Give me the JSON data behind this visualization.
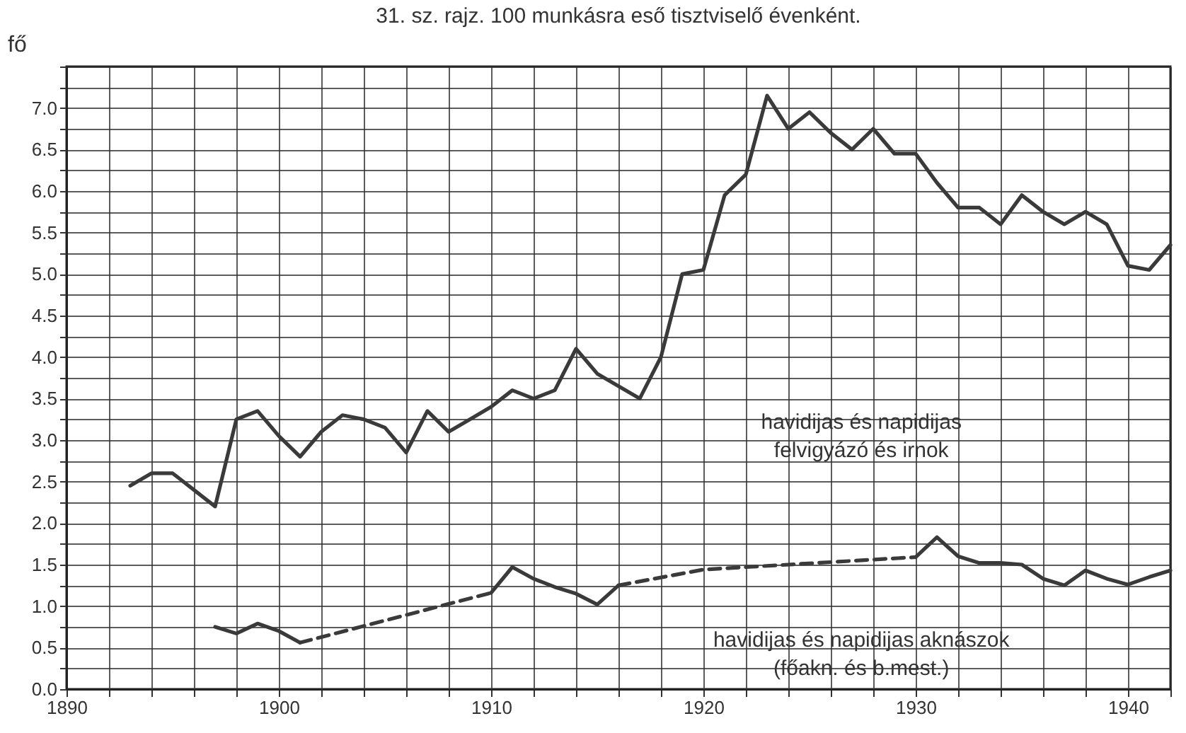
{
  "chart_data": {
    "type": "line",
    "title": "31. sz. rajz. 100 munkásra eső tisztviselő évenként.",
    "ylabel": "fő",
    "xlim": [
      1890,
      1942
    ],
    "ylim": [
      0,
      7.5
    ],
    "xticks": [
      1890,
      {
        "value": 1892,
        "label": null
      },
      {
        "value": 1894,
        "label": null
      },
      {
        "value": 1896,
        "label": null
      },
      {
        "value": 1898,
        "label": null
      },
      1900,
      {
        "value": 1902,
        "label": null
      },
      {
        "value": 1904,
        "label": null
      },
      {
        "value": 1906,
        "label": null
      },
      {
        "value": 1908,
        "label": null
      },
      1910,
      {
        "value": 1912,
        "label": null
      },
      {
        "value": 1914,
        "label": null
      },
      {
        "value": 1916,
        "label": null
      },
      {
        "value": 1918,
        "label": null
      },
      1920,
      {
        "value": 1922,
        "label": null
      },
      {
        "value": 1924,
        "label": null
      },
      {
        "value": 1926,
        "label": null
      },
      {
        "value": 1928,
        "label": null
      },
      1930,
      {
        "value": 1932,
        "label": null
      },
      {
        "value": 1934,
        "label": null
      },
      {
        "value": 1936,
        "label": null
      },
      {
        "value": 1938,
        "label": null
      },
      1940,
      {
        "value": 1942,
        "label": null
      }
    ],
    "yticks": [
      {
        "value": 0,
        "label": "0.0"
      },
      {
        "value": 0.25,
        "label": null
      },
      {
        "value": 0.5,
        "label": "0.5"
      },
      {
        "value": 0.75,
        "label": null
      },
      {
        "value": 1,
        "label": "1.0"
      },
      {
        "value": 1.25,
        "label": null
      },
      {
        "value": 1.5,
        "label": "1.5"
      },
      {
        "value": 1.75,
        "label": null
      },
      {
        "value": 2,
        "label": "2.0"
      },
      {
        "value": 2.25,
        "label": null
      },
      {
        "value": 2.5,
        "label": "2.5"
      },
      {
        "value": 2.75,
        "label": null
      },
      {
        "value": 3,
        "label": "3.0"
      },
      {
        "value": 3.25,
        "label": null
      },
      {
        "value": 3.5,
        "label": "3.5"
      },
      {
        "value": 3.75,
        "label": null
      },
      {
        "value": 4,
        "label": "4.0"
      },
      {
        "value": 4.25,
        "label": null
      },
      {
        "value": 4.5,
        "label": "4.5"
      },
      {
        "value": 4.75,
        "label": null
      },
      {
        "value": 5,
        "label": "5.0"
      },
      {
        "value": 5.25,
        "label": null
      },
      {
        "value": 5.5,
        "label": "5.5"
      },
      {
        "value": 5.75,
        "label": null
      },
      {
        "value": 6,
        "label": "6.0"
      },
      {
        "value": 6.25,
        "label": null
      },
      {
        "value": 6.5,
        "label": "6.5"
      },
      {
        "value": 6.75,
        "label": null
      },
      {
        "value": 7,
        "label": "7.0"
      },
      {
        "value": 7.25,
        "label": null
      },
      {
        "value": 7.5,
        "label": null
      }
    ],
    "grid": true,
    "series": [
      {
        "color": "#3a3a3a",
        "line_style": "solid",
        "x": [
          1893,
          1894,
          1895,
          1896,
          1897,
          1898,
          1899,
          1900,
          1901,
          1902,
          1903,
          1904,
          1905,
          1906,
          1907,
          1908,
          1909,
          1910,
          1911,
          1912,
          1913,
          1914,
          1915,
          1916,
          1917,
          1918,
          1919,
          1920,
          1921,
          1922,
          1923,
          1924,
          1925,
          1926,
          1927,
          1928,
          1929,
          1930,
          1931,
          1932,
          1933,
          1934,
          1935,
          1936,
          1937,
          1938,
          1939,
          1940,
          1941,
          1942
        ],
        "values": [
          2.45,
          2.6,
          2.6,
          2.4,
          2.2,
          3.25,
          3.35,
          3.05,
          2.8,
          3.1,
          3.3,
          3.25,
          3.15,
          2.85,
          3.35,
          3.1,
          3.25,
          3.4,
          3.6,
          3.5,
          3.6,
          4.1,
          3.8,
          3.65,
          3.5,
          4.0,
          5.0,
          5.05,
          5.95,
          6.2,
          7.15,
          6.75,
          6.95,
          6.7,
          6.5,
          6.75,
          6.45,
          6.45,
          6.1,
          5.8,
          5.8,
          5.6,
          5.95,
          5.75,
          5.6,
          5.75,
          5.6,
          5.1,
          5.05,
          5.35
        ]
      },
      {
        "color": "#3a3a3a",
        "line_style": "solid",
        "x": [
          1897,
          1898,
          1899,
          1900,
          1901
        ],
        "values": [
          0.75,
          0.67,
          0.79,
          0.7,
          0.56
        ]
      },
      {
        "color": "#3a3a3a",
        "line_style": "dashed",
        "x": [
          1901,
          1910
        ],
        "values": [
          0.56,
          1.16
        ]
      },
      {
        "color": "#3a3a3a",
        "line_style": "solid",
        "x": [
          1910,
          1911,
          1912,
          1913,
          1914,
          1915,
          1916
        ],
        "values": [
          1.16,
          1.47,
          1.33,
          1.23,
          1.15,
          1.02,
          1.25
        ]
      },
      {
        "color": "#3a3a3a",
        "line_style": "dashed",
        "x": [
          1916,
          1920,
          1930
        ],
        "values": [
          1.25,
          1.44,
          1.59
        ]
      },
      {
        "color": "#3a3a3a",
        "line_style": "solid",
        "x": [
          1930,
          1931,
          1932,
          1933,
          1934,
          1935,
          1936,
          1937,
          1938,
          1939,
          1940,
          1941,
          1942
        ],
        "values": [
          1.59,
          1.83,
          1.6,
          1.52,
          1.52,
          1.5,
          1.33,
          1.25,
          1.43,
          1.33,
          1.26,
          1.35,
          1.43
        ]
      }
    ],
    "annotations": [
      "havidijas és napidijas\nfelvigyázó és irnok",
      "havidijas és napidijas aknászok\n(főakn. és b.mest.)"
    ]
  }
}
